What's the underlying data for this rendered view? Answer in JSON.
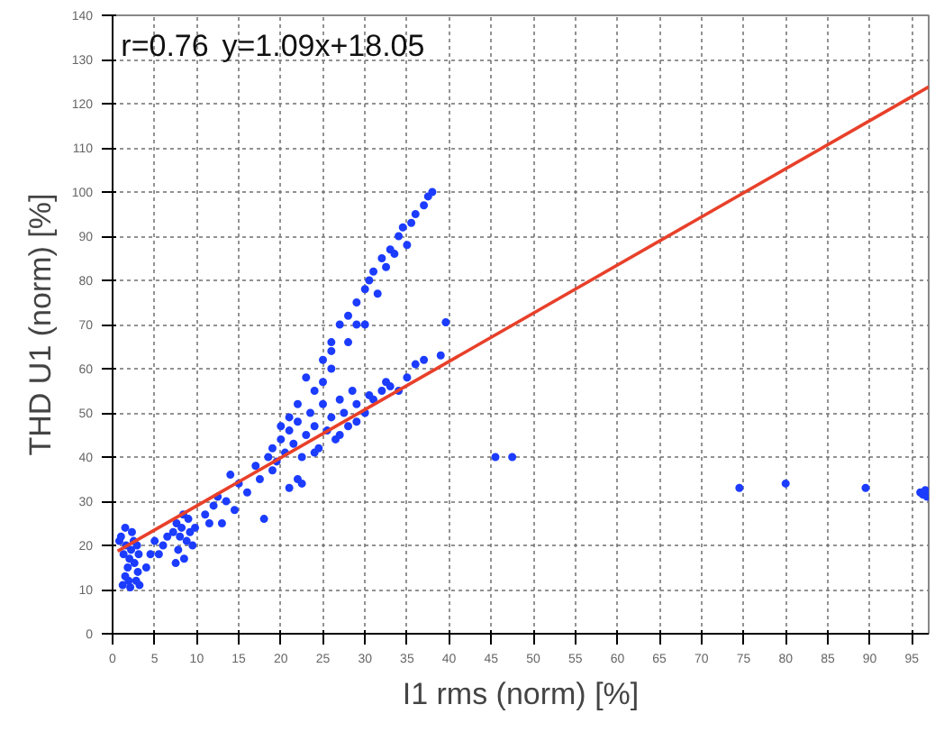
{
  "chart_data": {
    "type": "scatter",
    "xlabel": "I1 rms (norm) [%]",
    "ylabel": "THD U1 (norm) [%]",
    "annotations": [
      "r=0.76",
      "y=1.09x+18.05"
    ],
    "xlim": [
      0,
      97
    ],
    "ylim": [
      0,
      140
    ],
    "xticks": [
      0,
      5,
      10,
      15,
      20,
      25,
      30,
      35,
      40,
      45,
      50,
      55,
      60,
      65,
      70,
      75,
      80,
      85,
      90,
      95
    ],
    "yticks": [
      0,
      10,
      20,
      30,
      40,
      50,
      60,
      70,
      80,
      90,
      100,
      110,
      120,
      130,
      140
    ],
    "grid": true,
    "series": [
      {
        "color": "#1c3cff",
        "marker": "circle",
        "x": [
          1.2,
          1.5,
          1.8,
          2,
          2.2,
          2.5,
          2.8,
          3,
          1.3,
          1.6,
          2.1,
          2.6,
          3.1,
          1,
          1.5,
          2.3,
          0.8,
          2.9,
          1.9,
          3.2,
          4,
          4.5,
          5,
          5.5,
          6,
          6.5,
          7.5,
          7.8,
          8,
          8.2,
          8.5,
          8.8,
          9,
          9.2,
          9.5,
          7.6,
          8.4,
          9.8,
          7.2,
          11,
          12,
          12.5,
          13,
          14,
          14.5,
          15,
          16,
          17,
          17.5,
          13.5,
          11.5,
          18,
          21,
          22,
          22.5,
          18.5,
          19,
          19.5,
          20,
          20.5,
          21,
          21.5,
          22,
          22.5,
          23,
          23.5,
          24,
          24.5,
          25,
          25.5,
          26,
          26.5,
          27,
          27.5,
          28,
          28.5,
          29,
          30,
          30.5,
          31,
          32,
          32.5,
          33,
          34,
          35,
          36,
          37,
          39,
          20,
          22,
          24,
          23,
          25,
          26,
          21,
          19,
          27,
          29,
          24,
          25,
          26,
          27,
          28,
          29,
          30,
          30.5,
          31,
          31.5,
          32,
          32.5,
          33,
          33.5,
          34,
          34.5,
          35,
          35.5,
          36,
          37,
          37.5,
          38,
          30,
          29,
          39.6,
          26,
          28,
          45.5,
          47.5,
          74.5,
          80,
          89.5,
          96,
          96.3,
          96.6,
          96.8
        ],
        "values": [
          11,
          13,
          15,
          17,
          19,
          21,
          12,
          14,
          18,
          20,
          10.5,
          16,
          18,
          22,
          24,
          23,
          21,
          20,
          12,
          11,
          15,
          18,
          21,
          18,
          20,
          22,
          16,
          19,
          22,
          24,
          17,
          21,
          26,
          23,
          20,
          25,
          27,
          24,
          23,
          27,
          29,
          31,
          25,
          36,
          28,
          34,
          32,
          38,
          35,
          30,
          25,
          26,
          33,
          35,
          34,
          40,
          42,
          39,
          44,
          41,
          46,
          43,
          48,
          40,
          45,
          50,
          47,
          42,
          52,
          46,
          49,
          44,
          53,
          50,
          47,
          55,
          52,
          50,
          54,
          53,
          55,
          57,
          56,
          55,
          58,
          61,
          62,
          63,
          47,
          52,
          55,
          58,
          57,
          60,
          49,
          37,
          45,
          48,
          41,
          62,
          66,
          70,
          72,
          75,
          78,
          80,
          82,
          77,
          85,
          83,
          87,
          86,
          90,
          92,
          88,
          93,
          95,
          97,
          99,
          100,
          70,
          70,
          70.5,
          64,
          66,
          40,
          40,
          33,
          34,
          33,
          32,
          31.5,
          32.5,
          31
        ]
      },
      {
        "type": "line",
        "color": "#e8402a",
        "x": [
          0.6,
          97
        ],
        "values": [
          18.7,
          123.8
        ]
      }
    ]
  }
}
